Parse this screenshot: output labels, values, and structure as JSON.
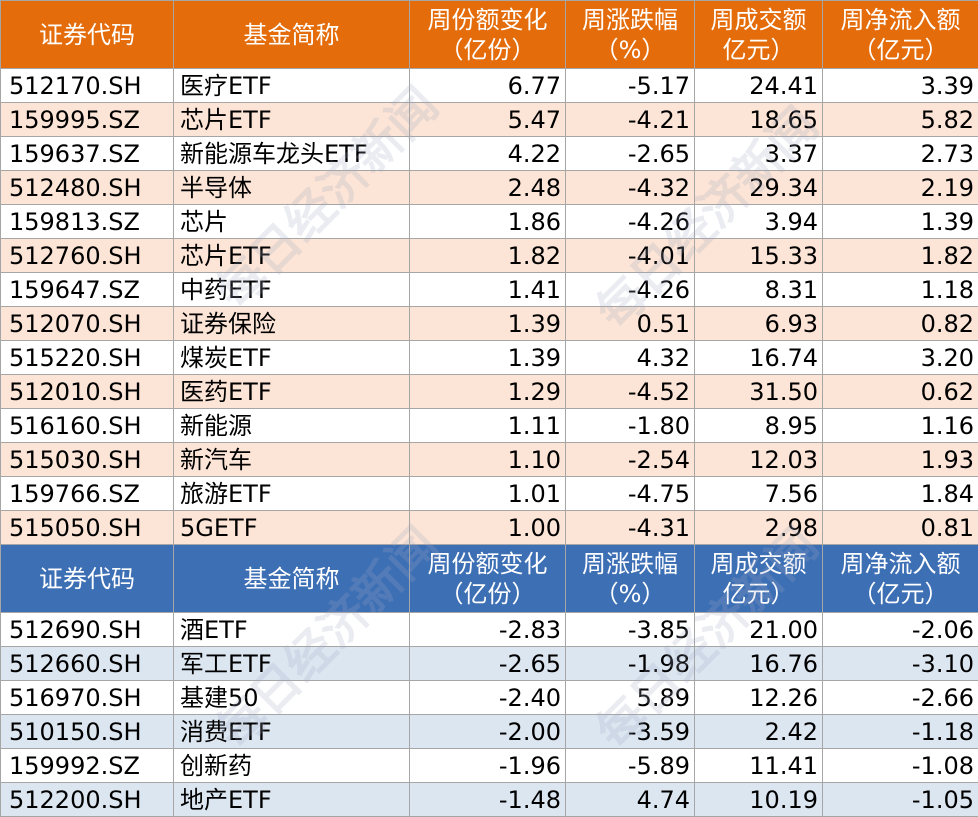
{
  "headers": {
    "code": "证券代码",
    "name": "基金简称",
    "share_change": "周份额变化（亿份）",
    "share_change_line1": "周份额变化",
    "share_change_line2": "（亿份）",
    "pct_line1": "周涨跌幅",
    "pct_line2": "（%）",
    "turnover_line1": "周成交额",
    "turnover_line2": "亿元）",
    "inflow_line1": "周净流入额",
    "inflow_line2": "（亿元）"
  },
  "top_rows": [
    {
      "code": "512170.SH",
      "name": "医疗ETF",
      "share": "6.77",
      "pct": "-5.17",
      "turnover": "24.41",
      "inflow": "3.39"
    },
    {
      "code": "159995.SZ",
      "name": "芯片ETF",
      "share": "5.47",
      "pct": "-4.21",
      "turnover": "18.65",
      "inflow": "5.82"
    },
    {
      "code": "159637.SZ",
      "name": "新能源车龙头ETF",
      "share": "4.22",
      "pct": "-2.65",
      "turnover": "3.37",
      "inflow": "2.73"
    },
    {
      "code": "512480.SH",
      "name": "半导体",
      "share": "2.48",
      "pct": "-4.32",
      "turnover": "29.34",
      "inflow": "2.19"
    },
    {
      "code": "159813.SZ",
      "name": "芯片",
      "share": "1.86",
      "pct": "-4.26",
      "turnover": "3.94",
      "inflow": "1.39"
    },
    {
      "code": "512760.SH",
      "name": "芯片ETF",
      "share": "1.82",
      "pct": "-4.01",
      "turnover": "15.33",
      "inflow": "1.82"
    },
    {
      "code": "159647.SZ",
      "name": "中药ETF",
      "share": "1.41",
      "pct": "-4.26",
      "turnover": "8.31",
      "inflow": "1.18"
    },
    {
      "code": "512070.SH",
      "name": "证券保险",
      "share": "1.39",
      "pct": "0.51",
      "turnover": "6.93",
      "inflow": "0.82"
    },
    {
      "code": "515220.SH",
      "name": "煤炭ETF",
      "share": "1.39",
      "pct": "4.32",
      "turnover": "16.74",
      "inflow": "3.20"
    },
    {
      "code": "512010.SH",
      "name": "医药ETF",
      "share": "1.29",
      "pct": "-4.52",
      "turnover": "31.50",
      "inflow": "0.62"
    },
    {
      "code": "516160.SH",
      "name": "新能源",
      "share": "1.11",
      "pct": "-1.80",
      "turnover": "8.95",
      "inflow": "1.16"
    },
    {
      "code": "515030.SH",
      "name": "新汽车",
      "share": "1.10",
      "pct": "-2.54",
      "turnover": "12.03",
      "inflow": "1.93"
    },
    {
      "code": "159766.SZ",
      "name": "旅游ETF",
      "share": "1.01",
      "pct": "-4.75",
      "turnover": "7.56",
      "inflow": "1.84"
    },
    {
      "code": "515050.SH",
      "name": "5GETF",
      "share": "1.00",
      "pct": "-4.31",
      "turnover": "2.98",
      "inflow": "0.81"
    }
  ],
  "bottom_rows": [
    {
      "code": "512690.SH",
      "name": "酒ETF",
      "share": "-2.83",
      "pct": "-3.85",
      "turnover": "21.00",
      "inflow": "-2.06"
    },
    {
      "code": "512660.SH",
      "name": "军工ETF",
      "share": "-2.65",
      "pct": "-1.98",
      "turnover": "16.76",
      "inflow": "-3.10"
    },
    {
      "code": "516970.SH",
      "name": "基建50",
      "share": "-2.40",
      "pct": "5.89",
      "turnover": "12.26",
      "inflow": "-2.66"
    },
    {
      "code": "510150.SH",
      "name": "消费ETF",
      "share": "-2.00",
      "pct": "-3.59",
      "turnover": "2.42",
      "inflow": "-1.18"
    },
    {
      "code": "159992.SZ",
      "name": "创新药",
      "share": "-1.96",
      "pct": "-5.89",
      "turnover": "11.41",
      "inflow": "-1.08"
    },
    {
      "code": "512200.SH",
      "name": "地产ETF",
      "share": "-1.48",
      "pct": "4.74",
      "turnover": "10.19",
      "inflow": "-1.05"
    }
  ],
  "colors": {
    "top_header_bg": "#e46c0a",
    "top_stripe": "#fce4d6",
    "bottom_header_bg": "#3d6fb5",
    "bottom_stripe": "#dce6f1"
  },
  "watermark": "每日经济新闻"
}
